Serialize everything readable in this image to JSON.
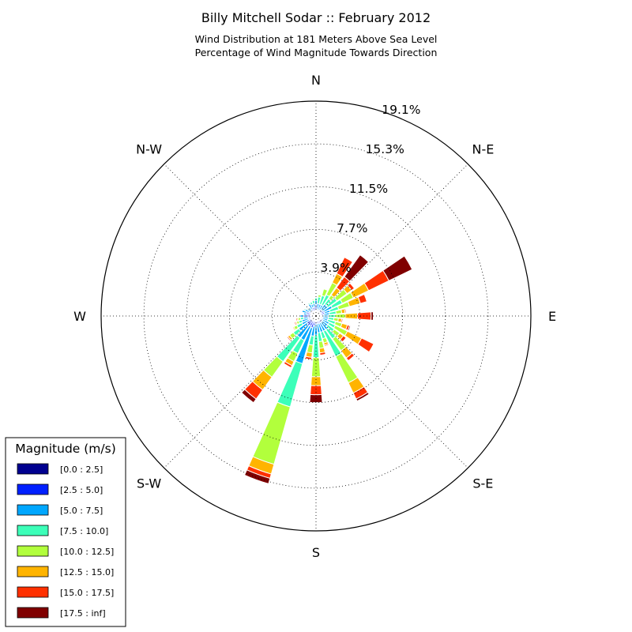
{
  "chart_data": {
    "type": "windrose",
    "title": "Billy Mitchell Sodar :: February 2012",
    "subtitle_lines": [
      "Wind Distribution at 181 Meters Above Sea Level",
      "Percentage of Wind Magnitude Towards Direction"
    ],
    "directions": [
      "N",
      "N-E",
      "E",
      "S-E",
      "S",
      "S-W",
      "W",
      "N-W"
    ],
    "ring_values": [
      3.9,
      7.7,
      11.5,
      15.3,
      19.1
    ],
    "ring_labels": [
      "3.9%",
      "7.7%",
      "11.5%",
      "15.3%",
      "19.1%"
    ],
    "rmax": 19.1,
    "legend_title": "Magnitude (m/s)",
    "bins": [
      {
        "label": "[0.0 : 2.5]",
        "color": "#00008f"
      },
      {
        "label": "[2.5 : 5.0]",
        "color": "#0020ff"
      },
      {
        "label": "[5.0 : 7.5]",
        "color": "#00a7ff"
      },
      {
        "label": "[7.5 : 10.0]",
        "color": "#3cffb9"
      },
      {
        "label": "[10.0 : 12.5]",
        "color": "#b2ff3c"
      },
      {
        "label": "[12.5 : 15.0]",
        "color": "#ffb400"
      },
      {
        "label": "[15.0 : 17.5]",
        "color": "#ff3000"
      },
      {
        "label": "[17.5 : inf]",
        "color": "#800000"
      }
    ],
    "sectors": [
      {
        "angle": 0,
        "counts": [
          0.3,
          0.7,
          0.4,
          0.2,
          0.0,
          0.0,
          0.0,
          0.0
        ]
      },
      {
        "angle": 10,
        "counts": [
          0.2,
          0.4,
          0.5,
          0.6,
          0.2,
          0.0,
          0.0,
          0.0
        ]
      },
      {
        "angle": 20,
        "counts": [
          0.2,
          0.3,
          0.6,
          0.8,
          0.6,
          0.0,
          0.0,
          0.0
        ]
      },
      {
        "angle": 30,
        "counts": [
          0.2,
          0.4,
          0.5,
          1.0,
          1.2,
          0.9,
          1.6,
          0.0
        ]
      },
      {
        "angle": 40,
        "counts": [
          0.2,
          0.5,
          0.6,
          0.6,
          0.4,
          0.8,
          1.2,
          2.4
        ]
      },
      {
        "angle": 50,
        "counts": [
          0.2,
          0.5,
          0.6,
          1.0,
          1.1,
          0.5,
          0.3,
          0.0
        ]
      },
      {
        "angle": 60,
        "counts": [
          0.2,
          0.6,
          0.8,
          1.0,
          1.1,
          1.5,
          2.0,
          2.3
        ]
      },
      {
        "angle": 70,
        "counts": [
          0.2,
          0.6,
          0.5,
          0.8,
          1.0,
          1.0,
          0.6,
          0.0
        ]
      },
      {
        "angle": 80,
        "counts": [
          0.2,
          0.5,
          0.5,
          0.6,
          0.5,
          0.3,
          0.1,
          0.0
        ]
      },
      {
        "angle": 90,
        "counts": [
          0.2,
          0.4,
          0.5,
          0.6,
          0.9,
          1.1,
          1.2,
          0.2
        ]
      },
      {
        "angle": 100,
        "counts": [
          0.2,
          0.4,
          0.5,
          0.5,
          0.4,
          0.3,
          0.1,
          0.0
        ]
      },
      {
        "angle": 110,
        "counts": [
          0.2,
          0.4,
          0.5,
          0.7,
          0.6,
          0.5,
          0.2,
          0.1
        ]
      },
      {
        "angle": 120,
        "counts": [
          0.2,
          0.5,
          0.6,
          0.6,
          1.2,
          1.4,
          1.2,
          0.0
        ]
      },
      {
        "angle": 130,
        "counts": [
          0.2,
          0.5,
          0.6,
          0.7,
          0.6,
          0.4,
          0.3,
          0.0
        ]
      },
      {
        "angle": 140,
        "counts": [
          0.2,
          0.5,
          0.8,
          1.0,
          1.3,
          0.8,
          0.3,
          0.0
        ]
      },
      {
        "angle": 150,
        "counts": [
          0.2,
          0.5,
          0.8,
          2.5,
          2.6,
          1.0,
          0.6,
          0.2
        ]
      },
      {
        "angle": 160,
        "counts": [
          0.2,
          0.5,
          0.8,
          0.6,
          0.4,
          0.2,
          0.1,
          0.0
        ]
      },
      {
        "angle": 170,
        "counts": [
          0.2,
          0.5,
          0.8,
          0.8,
          0.6,
          0.4,
          0.2,
          0.0
        ]
      },
      {
        "angle": 180,
        "counts": [
          0.2,
          0.5,
          1.0,
          2.0,
          1.7,
          0.8,
          0.8,
          0.7
        ]
      },
      {
        "angle": 190,
        "counts": [
          0.3,
          0.6,
          0.9,
          0.8,
          0.7,
          0.4,
          0.2,
          0.0
        ]
      },
      {
        "angle": 200,
        "counts": [
          0.3,
          0.8,
          3.3,
          4.0,
          5.3,
          0.9,
          0.4,
          0.5
        ]
      },
      {
        "angle": 210,
        "counts": [
          0.3,
          0.7,
          1.4,
          1.3,
          0.8,
          0.4,
          0.2,
          0.0
        ]
      },
      {
        "angle": 220,
        "counts": [
          0.3,
          0.8,
          1.3,
          2.6,
          1.7,
          1.4,
          1.0,
          0.4
        ]
      },
      {
        "angle": 230,
        "counts": [
          0.3,
          0.7,
          0.9,
          0.6,
          0.4,
          0.2,
          0.1,
          0.0
        ]
      },
      {
        "angle": 240,
        "counts": [
          0.2,
          0.5,
          0.7,
          0.5,
          0.3,
          0.1,
          0.0,
          0.0
        ]
      },
      {
        "angle": 250,
        "counts": [
          0.2,
          0.5,
          0.6,
          0.3,
          0.2,
          0.1,
          0.1,
          0.0
        ]
      },
      {
        "angle": 260,
        "counts": [
          0.2,
          0.5,
          0.4,
          0.3,
          0.2,
          0.1,
          0.1,
          0.0
        ]
      },
      {
        "angle": 270,
        "counts": [
          0.2,
          0.9,
          0.3,
          0.0,
          0.0,
          0.0,
          0.0,
          0.0
        ]
      },
      {
        "angle": 280,
        "counts": [
          0.2,
          0.6,
          0.3,
          0.0,
          0.0,
          0.0,
          0.0,
          0.0
        ]
      },
      {
        "angle": 290,
        "counts": [
          0.3,
          0.6,
          0.4,
          0.0,
          0.0,
          0.0,
          0.0,
          0.0
        ]
      },
      {
        "angle": 300,
        "counts": [
          0.2,
          0.5,
          0.4,
          0.1,
          0.0,
          0.0,
          0.0,
          0.0
        ]
      },
      {
        "angle": 310,
        "counts": [
          0.2,
          0.4,
          0.3,
          0.1,
          0.0,
          0.0,
          0.0,
          0.0
        ]
      },
      {
        "angle": 320,
        "counts": [
          0.2,
          0.4,
          0.3,
          0.0,
          0.0,
          0.0,
          0.0,
          0.0
        ]
      },
      {
        "angle": 330,
        "counts": [
          0.2,
          0.5,
          0.5,
          0.1,
          0.0,
          0.0,
          0.0,
          0.0
        ]
      },
      {
        "angle": 340,
        "counts": [
          0.2,
          0.6,
          0.3,
          0.2,
          0.0,
          0.0,
          0.0,
          0.0
        ]
      },
      {
        "angle": 350,
        "counts": [
          0.3,
          0.5,
          0.3,
          0.3,
          0.1,
          0.0,
          0.0,
          0.0
        ]
      }
    ]
  }
}
